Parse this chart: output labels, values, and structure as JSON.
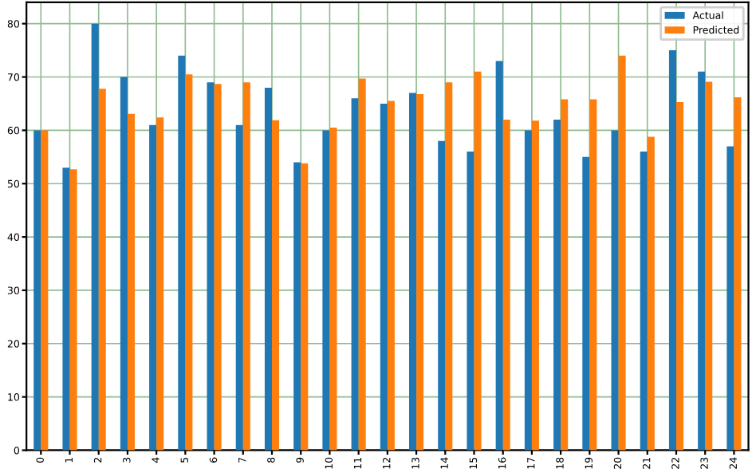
{
  "chart_data": {
    "type": "bar",
    "categories": [
      "0",
      "1",
      "2",
      "3",
      "4",
      "5",
      "6",
      "7",
      "8",
      "9",
      "10",
      "11",
      "12",
      "13",
      "14",
      "15",
      "16",
      "17",
      "18",
      "19",
      "20",
      "21",
      "22",
      "23",
      "24"
    ],
    "series": [
      {
        "name": "Actual",
        "color": "#1f77b4",
        "values": [
          60,
          53,
          80,
          70,
          61,
          74,
          69,
          61,
          68,
          54,
          60,
          66,
          65,
          67,
          58,
          56,
          73,
          60,
          62,
          55,
          60,
          56,
          75,
          71,
          57
        ]
      },
      {
        "name": "Predicted",
        "color": "#ff7f0e",
        "values": [
          60,
          52.7,
          67.8,
          63.1,
          62.4,
          70.5,
          68.7,
          69,
          61.9,
          53.8,
          60.5,
          69.7,
          65.5,
          66.8,
          69,
          71,
          62,
          61.8,
          65.8,
          65.8,
          74,
          58.8,
          65.3,
          69.1,
          66.2
        ]
      }
    ],
    "ylim": [
      0,
      84
    ],
    "yticks": [
      0,
      10,
      20,
      30,
      40,
      50,
      60,
      70,
      80
    ],
    "grid": true,
    "legend": "top right"
  }
}
